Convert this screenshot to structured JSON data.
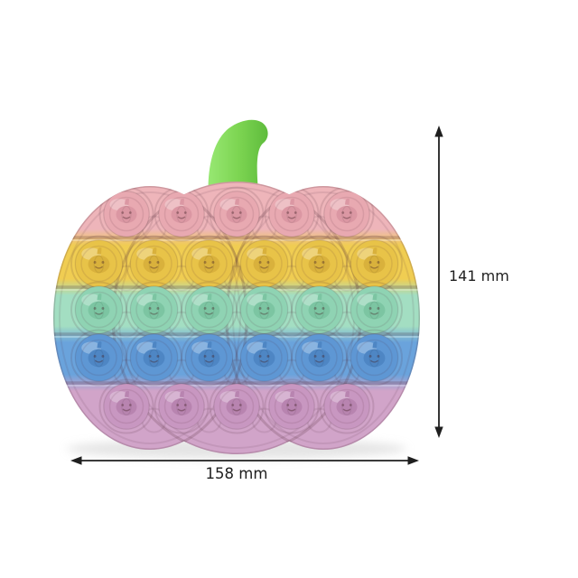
{
  "background_color": "#ffffff",
  "product": {
    "name": "rainbow-pumpkin-pop-it-fidget-toy",
    "stem": {
      "highlight": "#98e873",
      "color": "#7cd451",
      "shadow": "#5bb93a"
    },
    "rows": [
      {
        "label": "pink",
        "bubbles": 5,
        "band": "#eeb5ba",
        "bubble": "#e8a9b1",
        "emboss": "#db97a3"
      },
      {
        "label": "yellow",
        "bubbles": 6,
        "band": "#f0cd52",
        "bubble": "#e8c348",
        "emboss": "#d9b13c"
      },
      {
        "label": "mint",
        "bubbles": 6,
        "band": "#a3dec2",
        "bubble": "#8fd3b3",
        "emboss": "#7cc5a2"
      },
      {
        "label": "blue",
        "bubbles": 6,
        "band": "#6aa3dc",
        "bubble": "#5e97d4",
        "emboss": "#4e86c4"
      },
      {
        "label": "lavender",
        "bubbles": 5,
        "band": "#d1a4c9",
        "bubble": "#c897c1",
        "emboss": "#b884b0"
      }
    ],
    "bubble_total": 28,
    "bubble_emboss": "jack-o-lantern smiley face"
  },
  "dimensions": {
    "height_label": "141 mm",
    "width_label": "158 mm",
    "arrow_color": "#1f1f1f"
  }
}
